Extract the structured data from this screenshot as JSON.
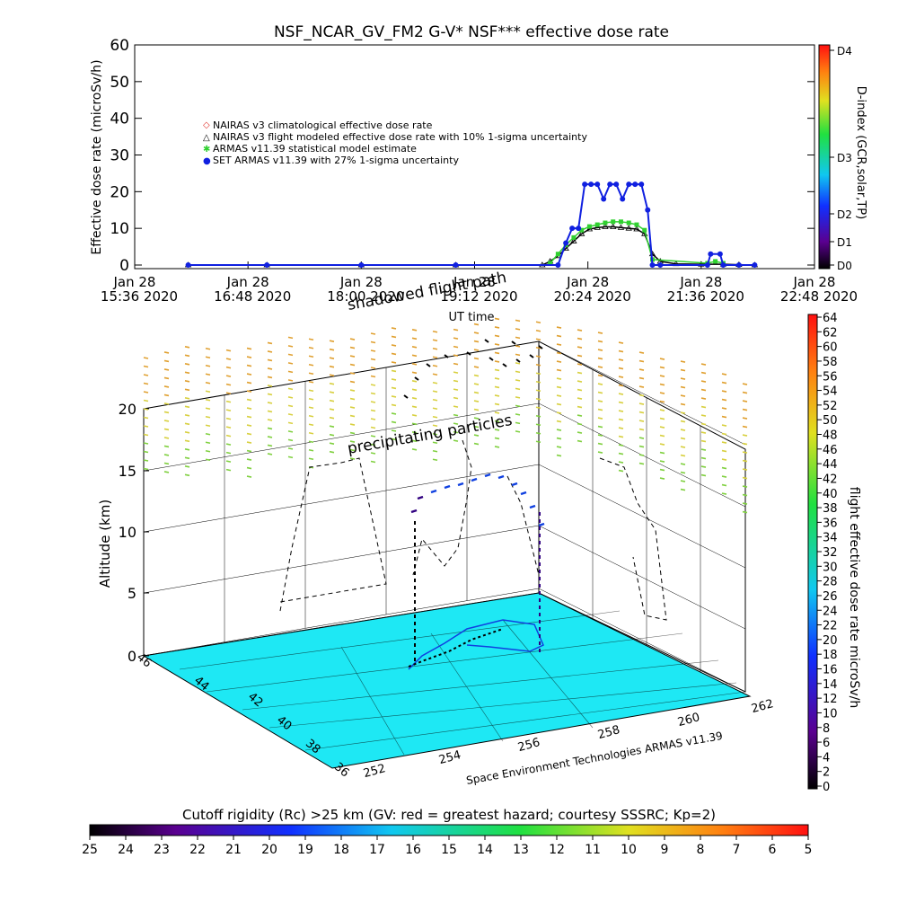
{
  "chart_data": [
    {
      "type": "line",
      "title": "NSF_NCAR_GV_FM2 G-V* NSF*** effective dose rate",
      "ylabel": "Effective dose rate (microSv/h)",
      "xlabel": "UT time",
      "ylim": [
        0,
        60
      ],
      "yticks": [
        "0",
        "10",
        "20",
        "30",
        "40",
        "50",
        "60"
      ],
      "xticks": [
        {
          "date": "Jan 28",
          "time": "15:36",
          "year": "2020"
        },
        {
          "date": "Jan 28",
          "time": "16:48",
          "year": "2020"
        },
        {
          "date": "Jan 28",
          "time": "18:00",
          "year": "2020"
        },
        {
          "date": "Jan 28",
          "time": "19:12",
          "year": "2020"
        },
        {
          "date": "Jan 28",
          "time": "20:24",
          "year": "2020"
        },
        {
          "date": "Jan 28",
          "time": "21:36",
          "year": "2020"
        },
        {
          "date": "Jan 28",
          "time": "22:48",
          "year": "2020"
        }
      ],
      "xlim": [
        "15:36",
        "22:48"
      ],
      "legend": [
        {
          "marker": "◇",
          "color": "#e0302a",
          "text": "NAIRAS v3 climatological effective dose rate"
        },
        {
          "marker": "△",
          "color": "#000000",
          "text": "NAIRAS v3 flight modeled effective dose rate with 10% 1-sigma uncertainty"
        },
        {
          "marker": "✱",
          "color": "#30d030",
          "text": "ARMAS v11.39 statistical model estimate"
        },
        {
          "marker": "●",
          "color": "#1020e0",
          "text": "SET ARMAS v11.39 with 27% 1-sigma uncertainty"
        }
      ],
      "series": [
        {
          "name": "NAIRAS v3 flight modeled effective dose rate with 10% 1-sigma uncertainty",
          "color": "#000000",
          "x": [
            "16:10",
            "17:00",
            "18:00",
            "19:00",
            "19:55",
            "20:00",
            "20:05",
            "20:10",
            "20:15",
            "20:20",
            "20:25",
            "20:30",
            "20:35",
            "20:40",
            "20:45",
            "20:50",
            "20:55",
            "21:00",
            "21:05",
            "21:10",
            "21:20",
            "21:36",
            "21:50",
            "22:00",
            "22:10"
          ],
          "values": [
            0,
            0,
            0,
            0,
            0,
            1.0,
            2.5,
            4.5,
            6.5,
            8.5,
            9.8,
            10.2,
            10.4,
            10.4,
            10.2,
            10.0,
            9.8,
            8.5,
            3.0,
            1.0,
            0.3,
            0.2,
            0.2,
            0.1,
            0
          ]
        },
        {
          "name": "ARMAS v11.39 statistical model estimate",
          "color": "#30d030",
          "x": [
            "20:00",
            "20:05",
            "20:10",
            "20:15",
            "20:20",
            "20:25",
            "20:30",
            "20:35",
            "20:40",
            "20:45",
            "20:50",
            "20:55",
            "21:00",
            "21:05",
            "21:40",
            "21:45",
            "21:50"
          ],
          "values": [
            0.5,
            3.0,
            5.5,
            7.5,
            9.5,
            10.5,
            11.0,
            11.5,
            11.8,
            11.8,
            11.5,
            11.0,
            9.5,
            1.5,
            0.5,
            1.0,
            0.5
          ]
        },
        {
          "name": "SET ARMAS v11.39 with 27% 1-sigma uncertainty",
          "color": "#1020e0",
          "x": [
            "16:10",
            "17:00",
            "18:00",
            "19:00",
            "20:05",
            "20:10",
            "20:14",
            "20:18",
            "20:22",
            "20:26",
            "20:30",
            "20:34",
            "20:38",
            "20:42",
            "20:46",
            "20:50",
            "20:54",
            "20:58",
            "21:02",
            "21:05",
            "21:10",
            "21:40",
            "21:42",
            "21:48",
            "21:50",
            "22:00",
            "22:10"
          ],
          "values": [
            0,
            0,
            0,
            0,
            0,
            6,
            10,
            10,
            22,
            22,
            22,
            18,
            22,
            22,
            18,
            22,
            22,
            22,
            15,
            0,
            0,
            0,
            3,
            3,
            0,
            0,
            0
          ]
        }
      ],
      "colorbar": {
        "label": "D-index (GCR,solar,TP)",
        "ticks": [
          "D0",
          "D1",
          "D2",
          "D3",
          "D4"
        ]
      }
    },
    {
      "type": "scatter",
      "subtitle": "shadowed flight path",
      "annotation": "precipitating particles",
      "zlabel": "Altitude (km)",
      "zticks": [
        "0",
        "5",
        "10",
        "15",
        "20"
      ],
      "lat_ticks": [
        "36",
        "38",
        "40",
        "42",
        "44",
        "46"
      ],
      "lon_ticks": [
        "252",
        "254",
        "256",
        "258",
        "260",
        "262"
      ],
      "credit": "Space Environment Technologies ARMAS v11.39",
      "colorbar": {
        "label": "flight effective dose rate microSv/h",
        "ticks": [
          "0",
          "2",
          "4",
          "6",
          "8",
          "10",
          "12",
          "14",
          "16",
          "18",
          "20",
          "22",
          "24",
          "26",
          "28",
          "30",
          "32",
          "34",
          "36",
          "38",
          "40",
          "42",
          "44",
          "46",
          "48",
          "50",
          "52",
          "54",
          "56",
          "58",
          "60",
          "62",
          "64"
        ]
      }
    },
    {
      "type": "heatmap",
      "title": "Cutoff rigidity (Rc) >25 km (GV: red = greatest hazard; courtesy SSSRC; Kp=2)",
      "ticks": [
        "25",
        "24",
        "23",
        "22",
        "21",
        "20",
        "19",
        "18",
        "17",
        "16",
        "15",
        "14",
        "13",
        "12",
        "11",
        "10",
        "9",
        "8",
        "7",
        "6",
        "5"
      ]
    }
  ]
}
